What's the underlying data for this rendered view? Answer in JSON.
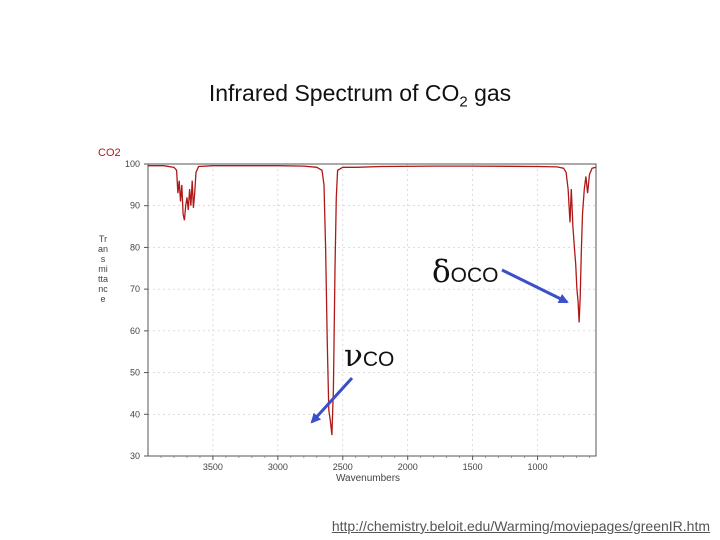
{
  "slide": {
    "title_main": "Infrared Spectrum of CO",
    "title_sub": "2",
    "title_tail": " gas",
    "source_url": "http://chemistry.beloit.edu/Warming/moviepages/greenIR.htm",
    "annotations": {
      "delta": {
        "greek": "δ",
        "sub": "OCO"
      },
      "nu": {
        "greek": "ν",
        "sub": "CO"
      }
    },
    "colors": {
      "spectrum": "#b01818",
      "arrow": "#3a4fc8",
      "axis": "#555555",
      "grid": "#c8c8c8"
    }
  },
  "chart_data": {
    "type": "line",
    "title": "CO2",
    "xlabel": "Wavenumbers",
    "ylabel": "Transmittance",
    "xlim": [
      4000,
      550
    ],
    "ylim": [
      30,
      100
    ],
    "x_ticks": [
      3500,
      3000,
      2500,
      2000,
      1500,
      1000
    ],
    "y_ticks": [
      100,
      90,
      80,
      70,
      60,
      50,
      40,
      30
    ],
    "grid": true,
    "series": [
      {
        "values": [
          [
            4000,
            99.6
          ],
          [
            3880,
            99.6
          ],
          [
            3800,
            99.2
          ],
          [
            3780,
            98.5
          ],
          [
            3770,
            93
          ],
          [
            3760,
            96
          ],
          [
            3750,
            91
          ],
          [
            3740,
            95
          ],
          [
            3730,
            88
          ],
          [
            3720,
            86.5
          ],
          [
            3710,
            90
          ],
          [
            3700,
            92
          ],
          [
            3690,
            89
          ],
          [
            3680,
            94
          ],
          [
            3670,
            90
          ],
          [
            3660,
            96
          ],
          [
            3650,
            89.5
          ],
          [
            3640,
            93
          ],
          [
            3630,
            98
          ],
          [
            3610,
            99.4
          ],
          [
            3500,
            99.6
          ],
          [
            3000,
            99.6
          ],
          [
            2800,
            99.5
          ],
          [
            2700,
            99.2
          ],
          [
            2660,
            98.5
          ],
          [
            2645,
            95
          ],
          [
            2632,
            80
          ],
          [
            2620,
            58
          ],
          [
            2608,
            41
          ],
          [
            2596,
            38.5
          ],
          [
            2584,
            35
          ],
          [
            2572,
            46
          ],
          [
            2560,
            75
          ],
          [
            2550,
            92
          ],
          [
            2540,
            98.5
          ],
          [
            2500,
            99.2
          ],
          [
            2400,
            99.2
          ],
          [
            2200,
            99.4
          ],
          [
            1800,
            99.5
          ],
          [
            1500,
            99.5
          ],
          [
            1000,
            99.4
          ],
          [
            850,
            99.3
          ],
          [
            800,
            99
          ],
          [
            780,
            98
          ],
          [
            765,
            94
          ],
          [
            750,
            86
          ],
          [
            740,
            94
          ],
          [
            728,
            85
          ],
          [
            716,
            80
          ],
          [
            706,
            76
          ],
          [
            697,
            70
          ],
          [
            688,
            67
          ],
          [
            680,
            62
          ],
          [
            672,
            68
          ],
          [
            664,
            78
          ],
          [
            654,
            88
          ],
          [
            640,
            94
          ],
          [
            628,
            97
          ],
          [
            615,
            93
          ],
          [
            600,
            97.5
          ],
          [
            580,
            99
          ],
          [
            550,
            99.2
          ]
        ]
      }
    ]
  }
}
